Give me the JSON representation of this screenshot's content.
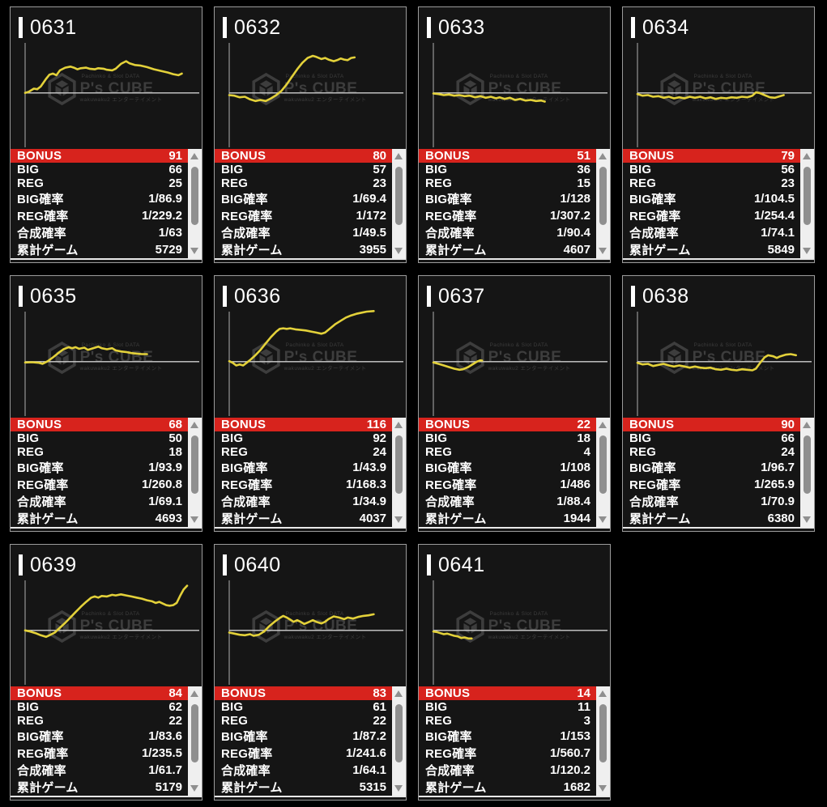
{
  "brand_watermark": {
    "top_text": "Pachinko & Slot DATA",
    "name": "P's CUBE",
    "bottom_text": "wakuwaku2 エンターテイメント"
  },
  "stat_labels": {
    "bonus": "BONUS",
    "big": "BIG",
    "reg": "REG",
    "big_rate": "BIG確率",
    "reg_rate": "REG確率",
    "combined_rate": "合成確率",
    "total_games": "累計ゲーム"
  },
  "colors": {
    "background": "#000000",
    "card_bg": "#151515",
    "card_border": "#9b9b9b",
    "bonus_row_bg": "#d7231d",
    "line": "#e3d13a",
    "axis": "#b0b0b0",
    "text": "#ffffff",
    "watermark": "#3d3d3d",
    "scrollbar_track": "#efefef",
    "scrollbar_thumb": "#8f8f8f"
  },
  "machines": [
    {
      "id": "0631",
      "bonus": "91",
      "big": "66",
      "reg": "25",
      "big_rate": "1/86.9",
      "reg_rate": "1/229.2",
      "combined_rate": "1/63",
      "total_games": "5729",
      "curve": [
        [
          0,
          0.48
        ],
        [
          0.02,
          0.47
        ],
        [
          0.05,
          0.44
        ],
        [
          0.07,
          0.445
        ],
        [
          0.09,
          0.42
        ],
        [
          0.12,
          0.35
        ],
        [
          0.14,
          0.31
        ],
        [
          0.16,
          0.3
        ],
        [
          0.18,
          0.315
        ],
        [
          0.2,
          0.27
        ],
        [
          0.23,
          0.245
        ],
        [
          0.26,
          0.235
        ],
        [
          0.28,
          0.245
        ],
        [
          0.3,
          0.26
        ],
        [
          0.32,
          0.25
        ],
        [
          0.35,
          0.245
        ],
        [
          0.37,
          0.255
        ],
        [
          0.4,
          0.26
        ],
        [
          0.42,
          0.25
        ],
        [
          0.45,
          0.255
        ],
        [
          0.47,
          0.265
        ],
        [
          0.5,
          0.27
        ],
        [
          0.52,
          0.255
        ],
        [
          0.55,
          0.21
        ],
        [
          0.58,
          0.185
        ],
        [
          0.6,
          0.205
        ],
        [
          0.63,
          0.22
        ],
        [
          0.66,
          0.225
        ],
        [
          0.7,
          0.24
        ],
        [
          0.74,
          0.26
        ],
        [
          0.78,
          0.275
        ],
        [
          0.82,
          0.29
        ],
        [
          0.85,
          0.305
        ],
        [
          0.88,
          0.315
        ],
        [
          0.9,
          0.3
        ]
      ]
    },
    {
      "id": "0632",
      "bonus": "80",
      "big": "57",
      "reg": "23",
      "big_rate": "1/69.4",
      "reg_rate": "1/172",
      "combined_rate": "1/49.5",
      "total_games": "3955",
      "curve": [
        [
          0,
          0.5
        ],
        [
          0.03,
          0.505
        ],
        [
          0.06,
          0.52
        ],
        [
          0.09,
          0.515
        ],
        [
          0.12,
          0.54
        ],
        [
          0.15,
          0.555
        ],
        [
          0.18,
          0.545
        ],
        [
          0.21,
          0.555
        ],
        [
          0.24,
          0.53
        ],
        [
          0.27,
          0.5
        ],
        [
          0.3,
          0.46
        ],
        [
          0.33,
          0.4
        ],
        [
          0.36,
          0.33
        ],
        [
          0.39,
          0.26
        ],
        [
          0.42,
          0.2
        ],
        [
          0.45,
          0.155
        ],
        [
          0.48,
          0.135
        ],
        [
          0.5,
          0.145
        ],
        [
          0.53,
          0.165
        ],
        [
          0.55,
          0.155
        ],
        [
          0.57,
          0.17
        ],
        [
          0.6,
          0.185
        ],
        [
          0.62,
          0.175
        ],
        [
          0.64,
          0.16
        ],
        [
          0.66,
          0.17
        ],
        [
          0.68,
          0.175
        ],
        [
          0.7,
          0.155
        ],
        [
          0.72,
          0.15
        ]
      ]
    },
    {
      "id": "0633",
      "bonus": "51",
      "big": "36",
      "reg": "15",
      "big_rate": "1/128",
      "reg_rate": "1/307.2",
      "combined_rate": "1/90.4",
      "total_games": "4607",
      "curve": [
        [
          0,
          0.485
        ],
        [
          0.03,
          0.49
        ],
        [
          0.06,
          0.5
        ],
        [
          0.09,
          0.495
        ],
        [
          0.12,
          0.505
        ],
        [
          0.15,
          0.5
        ],
        [
          0.18,
          0.51
        ],
        [
          0.21,
          0.505
        ],
        [
          0.24,
          0.52
        ],
        [
          0.27,
          0.51
        ],
        [
          0.3,
          0.525
        ],
        [
          0.33,
          0.515
        ],
        [
          0.36,
          0.53
        ],
        [
          0.38,
          0.52
        ],
        [
          0.41,
          0.535
        ],
        [
          0.44,
          0.525
        ],
        [
          0.47,
          0.545
        ],
        [
          0.5,
          0.535
        ],
        [
          0.53,
          0.55
        ],
        [
          0.56,
          0.545
        ],
        [
          0.59,
          0.555
        ],
        [
          0.62,
          0.55
        ],
        [
          0.64,
          0.56
        ]
      ]
    },
    {
      "id": "0634",
      "bonus": "79",
      "big": "56",
      "reg": "23",
      "big_rate": "1/104.5",
      "reg_rate": "1/254.4",
      "combined_rate": "1/74.1",
      "total_games": "5849",
      "curve": [
        [
          0,
          0.49
        ],
        [
          0.03,
          0.505
        ],
        [
          0.06,
          0.5
        ],
        [
          0.09,
          0.515
        ],
        [
          0.12,
          0.51
        ],
        [
          0.15,
          0.525
        ],
        [
          0.18,
          0.515
        ],
        [
          0.21,
          0.53
        ],
        [
          0.24,
          0.52
        ],
        [
          0.27,
          0.53
        ],
        [
          0.3,
          0.515
        ],
        [
          0.33,
          0.525
        ],
        [
          0.36,
          0.515
        ],
        [
          0.39,
          0.53
        ],
        [
          0.42,
          0.52
        ],
        [
          0.45,
          0.535
        ],
        [
          0.48,
          0.525
        ],
        [
          0.51,
          0.53
        ],
        [
          0.54,
          0.52
        ],
        [
          0.57,
          0.525
        ],
        [
          0.6,
          0.515
        ],
        [
          0.63,
          0.52
        ],
        [
          0.66,
          0.505
        ],
        [
          0.68,
          0.475
        ],
        [
          0.7,
          0.48
        ],
        [
          0.73,
          0.5
        ],
        [
          0.76,
          0.52
        ],
        [
          0.79,
          0.525
        ],
        [
          0.82,
          0.51
        ],
        [
          0.84,
          0.5
        ]
      ]
    },
    {
      "id": "0635",
      "bonus": "68",
      "big": "50",
      "reg": "18",
      "big_rate": "1/93.9",
      "reg_rate": "1/260.8",
      "combined_rate": "1/69.1",
      "total_games": "4693",
      "curve": [
        [
          0,
          0.487
        ],
        [
          0.04,
          0.485
        ],
        [
          0.08,
          0.49
        ],
        [
          0.1,
          0.5
        ],
        [
          0.13,
          0.475
        ],
        [
          0.16,
          0.44
        ],
        [
          0.19,
          0.4
        ],
        [
          0.22,
          0.365
        ],
        [
          0.25,
          0.345
        ],
        [
          0.27,
          0.355
        ],
        [
          0.29,
          0.345
        ],
        [
          0.31,
          0.36
        ],
        [
          0.34,
          0.35
        ],
        [
          0.36,
          0.37
        ],
        [
          0.39,
          0.355
        ],
        [
          0.42,
          0.34
        ],
        [
          0.44,
          0.355
        ],
        [
          0.47,
          0.365
        ],
        [
          0.5,
          0.355
        ],
        [
          0.52,
          0.375
        ],
        [
          0.55,
          0.385
        ],
        [
          0.58,
          0.39
        ],
        [
          0.61,
          0.4
        ],
        [
          0.64,
          0.405
        ],
        [
          0.67,
          0.41
        ],
        [
          0.7,
          0.41
        ]
      ]
    },
    {
      "id": "0636",
      "bonus": "116",
      "big": "92",
      "reg": "24",
      "big_rate": "1/43.9",
      "reg_rate": "1/168.3",
      "combined_rate": "1/34.9",
      "total_games": "4037",
      "curve": [
        [
          0,
          0.475
        ],
        [
          0.02,
          0.49
        ],
        [
          0.04,
          0.515
        ],
        [
          0.06,
          0.505
        ],
        [
          0.08,
          0.515
        ],
        [
          0.1,
          0.49
        ],
        [
          0.12,
          0.465
        ],
        [
          0.15,
          0.42
        ],
        [
          0.18,
          0.37
        ],
        [
          0.21,
          0.31
        ],
        [
          0.24,
          0.25
        ],
        [
          0.27,
          0.2
        ],
        [
          0.29,
          0.175
        ],
        [
          0.31,
          0.17
        ],
        [
          0.33,
          0.175
        ],
        [
          0.35,
          0.17
        ],
        [
          0.38,
          0.18
        ],
        [
          0.41,
          0.185
        ],
        [
          0.44,
          0.19
        ],
        [
          0.47,
          0.2
        ],
        [
          0.5,
          0.21
        ],
        [
          0.53,
          0.22
        ],
        [
          0.55,
          0.21
        ],
        [
          0.58,
          0.17
        ],
        [
          0.61,
          0.13
        ],
        [
          0.64,
          0.1
        ],
        [
          0.67,
          0.07
        ],
        [
          0.7,
          0.05
        ],
        [
          0.73,
          0.035
        ],
        [
          0.76,
          0.025
        ],
        [
          0.79,
          0.015
        ],
        [
          0.83,
          0.01
        ]
      ]
    },
    {
      "id": "0637",
      "bonus": "22",
      "big": "18",
      "reg": "4",
      "big_rate": "1/108",
      "reg_rate": "1/486",
      "combined_rate": "1/88.4",
      "total_games": "1944",
      "curve": [
        [
          0,
          0.487
        ],
        [
          0.03,
          0.5
        ],
        [
          0.06,
          0.515
        ],
        [
          0.09,
          0.53
        ],
        [
          0.12,
          0.545
        ],
        [
          0.15,
          0.555
        ],
        [
          0.17,
          0.55
        ],
        [
          0.2,
          0.53
        ],
        [
          0.23,
          0.5
        ],
        [
          0.25,
          0.48
        ],
        [
          0.27,
          0.467
        ],
        [
          0.28,
          0.47
        ]
      ]
    },
    {
      "id": "0638",
      "bonus": "90",
      "big": "66",
      "reg": "24",
      "big_rate": "1/96.7",
      "reg_rate": "1/265.9",
      "combined_rate": "1/70.9",
      "total_games": "6380",
      "curve": [
        [
          0,
          0.49
        ],
        [
          0.03,
          0.505
        ],
        [
          0.06,
          0.5
        ],
        [
          0.09,
          0.52
        ],
        [
          0.12,
          0.51
        ],
        [
          0.15,
          0.5
        ],
        [
          0.18,
          0.515
        ],
        [
          0.21,
          0.525
        ],
        [
          0.24,
          0.515
        ],
        [
          0.27,
          0.525
        ],
        [
          0.3,
          0.535
        ],
        [
          0.33,
          0.525
        ],
        [
          0.36,
          0.535
        ],
        [
          0.39,
          0.54
        ],
        [
          0.42,
          0.535
        ],
        [
          0.45,
          0.55
        ],
        [
          0.48,
          0.555
        ],
        [
          0.51,
          0.545
        ],
        [
          0.54,
          0.555
        ],
        [
          0.57,
          0.56
        ],
        [
          0.6,
          0.55
        ],
        [
          0.63,
          0.555
        ],
        [
          0.66,
          0.56
        ],
        [
          0.68,
          0.545
        ],
        [
          0.7,
          0.5
        ],
        [
          0.73,
          0.44
        ],
        [
          0.75,
          0.42
        ],
        [
          0.78,
          0.43
        ],
        [
          0.8,
          0.445
        ],
        [
          0.82,
          0.43
        ],
        [
          0.85,
          0.415
        ],
        [
          0.88,
          0.41
        ],
        [
          0.91,
          0.42
        ]
      ]
    },
    {
      "id": "0639",
      "bonus": "84",
      "big": "62",
      "reg": "22",
      "big_rate": "1/83.6",
      "reg_rate": "1/235.5",
      "combined_rate": "1/61.7",
      "total_games": "5179",
      "curve": [
        [
          0,
          0.48
        ],
        [
          0.03,
          0.49
        ],
        [
          0.06,
          0.505
        ],
        [
          0.09,
          0.525
        ],
        [
          0.12,
          0.54
        ],
        [
          0.14,
          0.525
        ],
        [
          0.17,
          0.5
        ],
        [
          0.2,
          0.455
        ],
        [
          0.23,
          0.41
        ],
        [
          0.26,
          0.36
        ],
        [
          0.29,
          0.31
        ],
        [
          0.32,
          0.26
        ],
        [
          0.35,
          0.215
        ],
        [
          0.38,
          0.175
        ],
        [
          0.4,
          0.165
        ],
        [
          0.42,
          0.175
        ],
        [
          0.44,
          0.16
        ],
        [
          0.47,
          0.165
        ],
        [
          0.5,
          0.15
        ],
        [
          0.52,
          0.155
        ],
        [
          0.55,
          0.145
        ],
        [
          0.58,
          0.155
        ],
        [
          0.61,
          0.165
        ],
        [
          0.64,
          0.175
        ],
        [
          0.67,
          0.185
        ],
        [
          0.7,
          0.2
        ],
        [
          0.73,
          0.21
        ],
        [
          0.75,
          0.225
        ],
        [
          0.77,
          0.215
        ],
        [
          0.79,
          0.23
        ],
        [
          0.81,
          0.245
        ],
        [
          0.83,
          0.25
        ],
        [
          0.85,
          0.245
        ],
        [
          0.87,
          0.225
        ],
        [
          0.89,
          0.16
        ],
        [
          0.91,
          0.1
        ],
        [
          0.93,
          0.065
        ]
      ]
    },
    {
      "id": "0640",
      "bonus": "83",
      "big": "61",
      "reg": "22",
      "big_rate": "1/87.2",
      "reg_rate": "1/241.6",
      "combined_rate": "1/64.1",
      "total_games": "5315",
      "curve": [
        [
          0,
          0.5
        ],
        [
          0.03,
          0.51
        ],
        [
          0.06,
          0.52
        ],
        [
          0.09,
          0.525
        ],
        [
          0.12,
          0.515
        ],
        [
          0.14,
          0.53
        ],
        [
          0.17,
          0.52
        ],
        [
          0.2,
          0.49
        ],
        [
          0.23,
          0.44
        ],
        [
          0.26,
          0.4
        ],
        [
          0.29,
          0.365
        ],
        [
          0.31,
          0.345
        ],
        [
          0.33,
          0.36
        ],
        [
          0.35,
          0.38
        ],
        [
          0.37,
          0.4
        ],
        [
          0.39,
          0.385
        ],
        [
          0.41,
          0.4
        ],
        [
          0.43,
          0.42
        ],
        [
          0.46,
          0.4
        ],
        [
          0.48,
          0.385
        ],
        [
          0.5,
          0.4
        ],
        [
          0.53,
          0.415
        ],
        [
          0.55,
          0.4
        ],
        [
          0.57,
          0.375
        ],
        [
          0.6,
          0.35
        ],
        [
          0.63,
          0.36
        ],
        [
          0.66,
          0.375
        ],
        [
          0.68,
          0.36
        ],
        [
          0.71,
          0.37
        ],
        [
          0.74,
          0.355
        ],
        [
          0.77,
          0.345
        ],
        [
          0.8,
          0.34
        ],
        [
          0.83,
          0.33
        ]
      ]
    },
    {
      "id": "0641",
      "bonus": "14",
      "big": "11",
      "reg": "3",
      "big_rate": "1/153",
      "reg_rate": "1/560.7",
      "combined_rate": "1/120.2",
      "total_games": "1682",
      "curve": [
        [
          0,
          0.49
        ],
        [
          0.02,
          0.495
        ],
        [
          0.04,
          0.505
        ],
        [
          0.06,
          0.515
        ],
        [
          0.08,
          0.51
        ],
        [
          0.1,
          0.52
        ],
        [
          0.12,
          0.53
        ],
        [
          0.14,
          0.535
        ],
        [
          0.16,
          0.55
        ],
        [
          0.18,
          0.545
        ],
        [
          0.2,
          0.555
        ],
        [
          0.22,
          0.555
        ]
      ]
    }
  ]
}
